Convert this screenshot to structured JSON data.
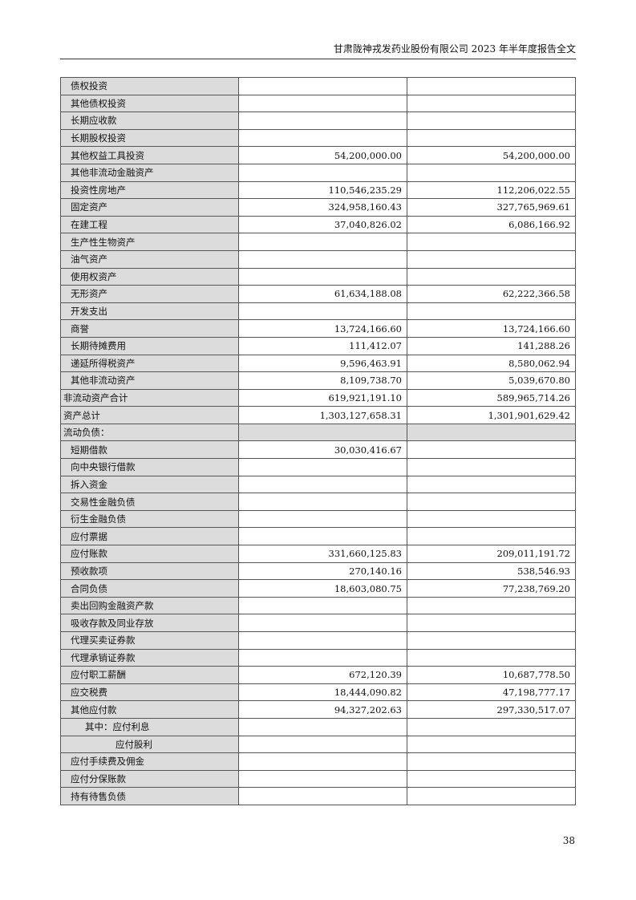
{
  "header": {
    "title": "甘肃陇神戎发药业股份有限公司 2023 年半年度报告全文"
  },
  "rows": [
    {
      "label": "债权投资",
      "indent": 1,
      "a": "",
      "b": ""
    },
    {
      "label": "其他债权投资",
      "indent": 1,
      "a": "",
      "b": ""
    },
    {
      "label": "长期应收款",
      "indent": 1,
      "a": "",
      "b": ""
    },
    {
      "label": "长期股权投资",
      "indent": 1,
      "a": "",
      "b": ""
    },
    {
      "label": "其他权益工具投资",
      "indent": 1,
      "a": "54,200,000.00",
      "b": "54,200,000.00"
    },
    {
      "label": "其他非流动金融资产",
      "indent": 1,
      "a": "",
      "b": ""
    },
    {
      "label": "投资性房地产",
      "indent": 1,
      "a": "110,546,235.29",
      "b": "112,206,022.55"
    },
    {
      "label": "固定资产",
      "indent": 1,
      "a": "324,958,160.43",
      "b": "327,765,969.61"
    },
    {
      "label": "在建工程",
      "indent": 1,
      "a": "37,040,826.02",
      "b": "6,086,166.92"
    },
    {
      "label": "生产性生物资产",
      "indent": 1,
      "a": "",
      "b": ""
    },
    {
      "label": "油气资产",
      "indent": 1,
      "a": "",
      "b": ""
    },
    {
      "label": "使用权资产",
      "indent": 1,
      "a": "",
      "b": ""
    },
    {
      "label": "无形资产",
      "indent": 1,
      "a": "61,634,188.08",
      "b": "62,222,366.58"
    },
    {
      "label": "开发支出",
      "indent": 1,
      "a": "",
      "b": ""
    },
    {
      "label": "商誉",
      "indent": 1,
      "a": "13,724,166.60",
      "b": "13,724,166.60"
    },
    {
      "label": "长期待摊费用",
      "indent": 1,
      "a": "111,412.07",
      "b": "141,288.26"
    },
    {
      "label": "递延所得税资产",
      "indent": 1,
      "a": "9,596,463.91",
      "b": "8,580,062.94"
    },
    {
      "label": "其他非流动资产",
      "indent": 1,
      "a": "8,109,738.70",
      "b": "5,039,670.80"
    },
    {
      "label": "非流动资产合计",
      "indent": 0,
      "a": "619,921,191.10",
      "b": "589,965,714.26"
    },
    {
      "label": "资产总计",
      "indent": 0,
      "a": "1,303,127,658.31",
      "b": "1,301,901,629.42"
    },
    {
      "label": "流动负债：",
      "indent": 0,
      "a": "",
      "b": "",
      "section": true
    },
    {
      "label": "短期借款",
      "indent": 1,
      "a": "30,030,416.67",
      "b": ""
    },
    {
      "label": "向中央银行借款",
      "indent": 1,
      "a": "",
      "b": ""
    },
    {
      "label": "拆入资金",
      "indent": 1,
      "a": "",
      "b": ""
    },
    {
      "label": "交易性金融负债",
      "indent": 1,
      "a": "",
      "b": ""
    },
    {
      "label": "衍生金融负债",
      "indent": 1,
      "a": "",
      "b": ""
    },
    {
      "label": "应付票据",
      "indent": 1,
      "a": "",
      "b": ""
    },
    {
      "label": "应付账款",
      "indent": 1,
      "a": "331,660,125.83",
      "b": "209,011,191.72"
    },
    {
      "label": "预收款项",
      "indent": 1,
      "a": "270,140.16",
      "b": "538,546.93"
    },
    {
      "label": "合同负债",
      "indent": 1,
      "a": "18,603,080.75",
      "b": "77,238,769.20"
    },
    {
      "label": "卖出回购金融资产款",
      "indent": 1,
      "a": "",
      "b": ""
    },
    {
      "label": "吸收存款及同业存放",
      "indent": 1,
      "a": "",
      "b": ""
    },
    {
      "label": "代理买卖证券款",
      "indent": 1,
      "a": "",
      "b": ""
    },
    {
      "label": "代理承销证券款",
      "indent": 1,
      "a": "",
      "b": ""
    },
    {
      "label": "应付职工薪酬",
      "indent": 1,
      "a": "672,120.39",
      "b": "10,687,778.50"
    },
    {
      "label": "应交税费",
      "indent": 1,
      "a": "18,444,090.82",
      "b": "47,198,777.17"
    },
    {
      "label": "其他应付款",
      "indent": 1,
      "a": "94,327,202.63",
      "b": "297,330,517.07"
    },
    {
      "label": "其中：应付利息",
      "indent": 2,
      "a": "",
      "b": ""
    },
    {
      "label": "应付股利",
      "indent": 3,
      "a": "",
      "b": ""
    },
    {
      "label": "应付手续费及佣金",
      "indent": 1,
      "a": "",
      "b": ""
    },
    {
      "label": "应付分保账款",
      "indent": 1,
      "a": "",
      "b": ""
    },
    {
      "label": "持有待售负债",
      "indent": 1,
      "a": "",
      "b": ""
    }
  ],
  "page_number": "38"
}
